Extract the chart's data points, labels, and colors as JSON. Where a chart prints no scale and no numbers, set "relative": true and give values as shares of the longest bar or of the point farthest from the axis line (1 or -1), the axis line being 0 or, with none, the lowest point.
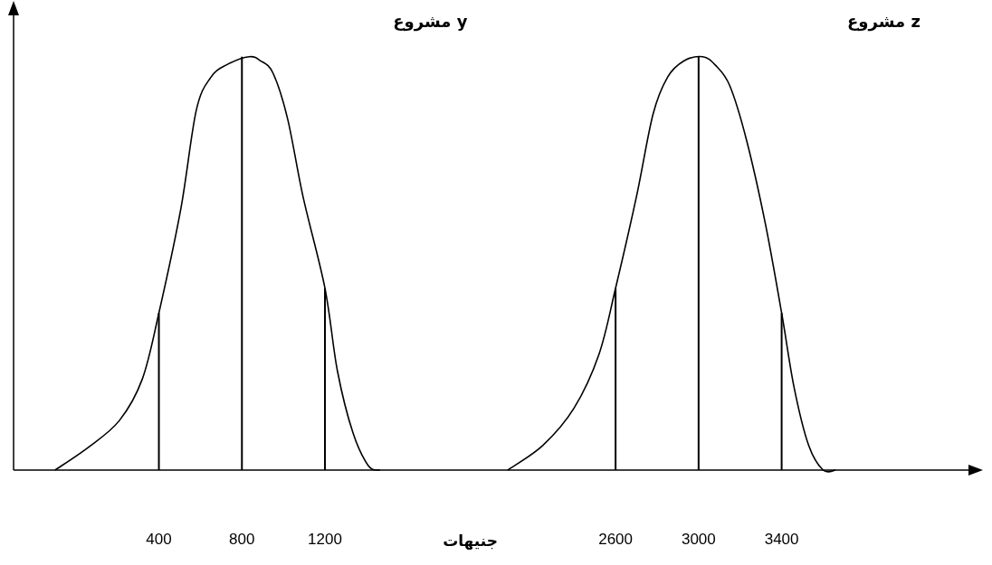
{
  "chart_data": {
    "type": "line",
    "relative": true,
    "xlabel": "جنيهات",
    "xlim": [
      -300,
      4300
    ],
    "xticks": [
      400,
      800,
      1200,
      2600,
      3000,
      3400
    ],
    "series": [
      {
        "name": "مشروع y",
        "color": "#000000",
        "x": [
          -100,
          60,
          210,
          320,
          400,
          505,
          580,
          650,
          725,
          835,
          890,
          950,
          1020,
          1095,
          1200,
          1260,
          1335,
          1410,
          1465
        ],
        "values": [
          0,
          0.055,
          0.12,
          0.22,
          0.38,
          0.63,
          0.87,
          0.95,
          0.98,
          1,
          0.99,
          0.96,
          0.85,
          0.66,
          0.44,
          0.24,
          0.09,
          0.01,
          0
        ]
      },
      {
        "name": "مشروع z",
        "color": "#000000",
        "x": [
          2080,
          2250,
          2400,
          2520,
          2600,
          2700,
          2780,
          2850,
          2930,
          3020,
          3080,
          3150,
          3230,
          3320,
          3400,
          3460,
          3530,
          3600,
          3660
        ],
        "values": [
          0,
          0.06,
          0.15,
          0.28,
          0.44,
          0.66,
          0.86,
          0.95,
          0.99,
          1,
          0.98,
          0.93,
          0.8,
          0.6,
          0.38,
          0.2,
          0.06,
          0,
          0
        ]
      },
      {
        "type": "bar",
        "color": "#000000",
        "x": [
          400,
          800,
          1200,
          2600,
          3000,
          3400
        ],
        "values": [
          0.38,
          1,
          0.44,
          0.44,
          1,
          0.38
        ]
      }
    ]
  }
}
